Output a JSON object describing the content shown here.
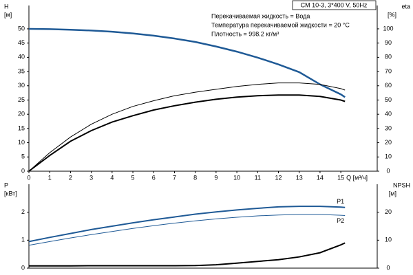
{
  "chart_data": [
    {
      "type": "line",
      "title": "CM 10-3, 3*400 V, 50Hz",
      "annotations": [
        "Перекачиваемая жидкость = Вода",
        "Температура перекачиваемой жидкости = 20 °C",
        "Плотность = 998.2 кг/м³"
      ],
      "ylabel": "H",
      "yunit": "[м]",
      "y2label": "eta",
      "y2unit": "[%]",
      "xlabel": "Q [м³/ч]",
      "x": [
        0,
        1,
        2,
        3,
        4,
        5,
        6,
        7,
        8,
        9,
        10,
        11,
        12,
        13,
        14,
        15,
        15.2
      ],
      "xlim": [
        0,
        16.75
      ],
      "xticks": [
        0,
        1,
        2,
        3,
        4,
        5,
        6,
        7,
        8,
        9,
        10,
        11,
        12,
        13,
        14,
        15
      ],
      "ylim": [
        0,
        58.2
      ],
      "yticks": [
        0,
        5,
        10,
        15,
        20,
        25,
        30,
        35,
        40,
        45,
        50
      ],
      "y2lim": [
        0,
        116.4
      ],
      "y2ticks": [
        0,
        10,
        20,
        30,
        40,
        50,
        60,
        70,
        80,
        90,
        100
      ],
      "series": [
        {
          "color": "#1f5a96",
          "width": 2.5,
          "values": [
            50,
            49.9,
            49.7,
            49.4,
            49,
            48.4,
            47.6,
            46.6,
            45.4,
            43.8,
            42,
            39.9,
            37.5,
            34.8,
            30.5,
            27,
            26
          ]
        },
        {
          "color": "#000000",
          "width": 1,
          "axis": "y2",
          "values": [
            0,
            13,
            24,
            33,
            40,
            45.5,
            49.5,
            53,
            55.5,
            57.5,
            59.5,
            61,
            62,
            62,
            61,
            58,
            57
          ]
        },
        {
          "color": "#000000",
          "width": 2,
          "axis": "y2",
          "values": [
            0,
            11,
            21,
            28.5,
            34.5,
            39,
            43,
            46,
            48.5,
            50.5,
            52,
            53,
            53.5,
            53.5,
            52.5,
            50,
            49
          ]
        }
      ]
    },
    {
      "type": "line",
      "ylabel": "P",
      "yunit": "[кВт]",
      "y2label": "NPSH",
      "y2unit": "[м]",
      "x": [
        0,
        1,
        2,
        3,
        4,
        5,
        6,
        7,
        8,
        9,
        10,
        11,
        12,
        13,
        14,
        15,
        15.2
      ],
      "xlim": [
        0,
        16.75
      ],
      "ylim": [
        0,
        3
      ],
      "yticks": [
        0,
        1,
        2
      ],
      "y2lim": [
        0,
        30
      ],
      "y2ticks": [
        0,
        10,
        20
      ],
      "series": [
        {
          "name": "P1",
          "color": "#1f5a96",
          "width": 2,
          "values": [
            0.95,
            1.1,
            1.24,
            1.38,
            1.5,
            1.62,
            1.73,
            1.83,
            1.93,
            2.01,
            2.08,
            2.14,
            2.19,
            2.21,
            2.21,
            2.18,
            2.17
          ]
        },
        {
          "name": "P2",
          "color": "#1f5a96",
          "width": 1,
          "values": [
            0.82,
            0.95,
            1.08,
            1.2,
            1.31,
            1.42,
            1.52,
            1.61,
            1.69,
            1.76,
            1.82,
            1.87,
            1.9,
            1.92,
            1.92,
            1.89,
            1.88
          ]
        },
        {
          "color": "#000000",
          "width": 2,
          "axis": "y2",
          "values": [
            0.8,
            0.8,
            0.8,
            0.85,
            0.85,
            0.85,
            0.85,
            0.85,
            0.9,
            1.2,
            1.8,
            2.4,
            3,
            4,
            5.5,
            8.3,
            9
          ]
        }
      ]
    }
  ]
}
